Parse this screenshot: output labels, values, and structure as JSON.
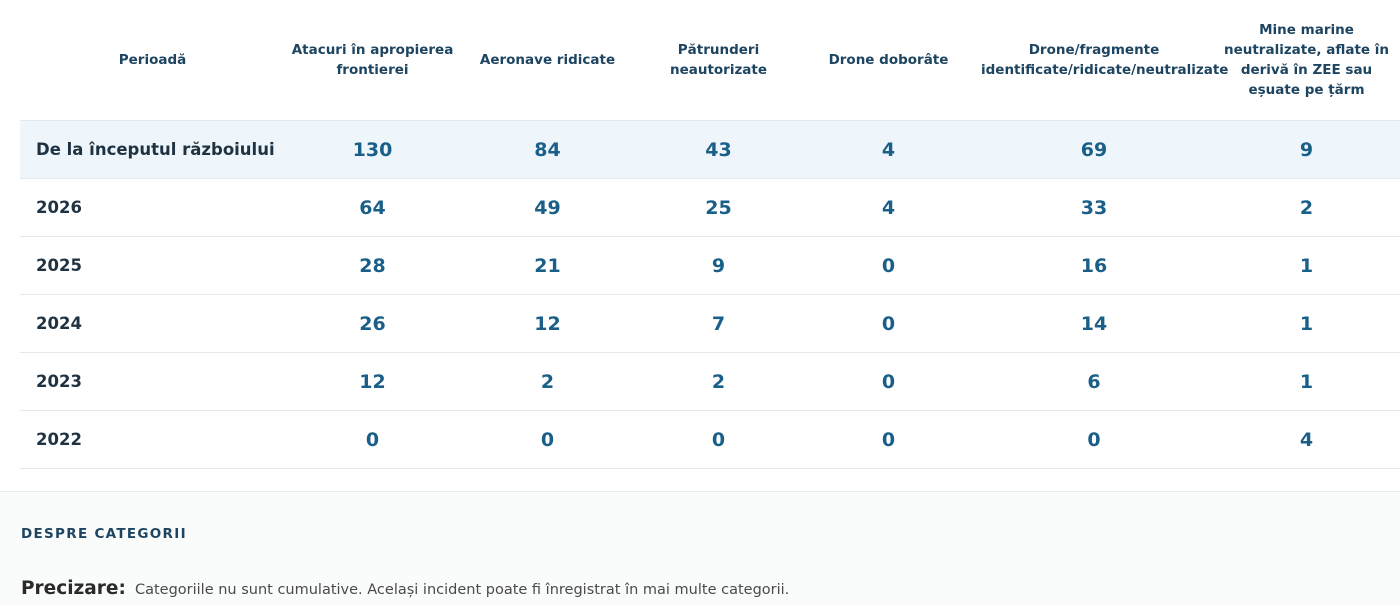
{
  "table": {
    "headers": [
      "Perioadă",
      "Atacuri în apropierea frontierei",
      "Aeronave ridicate",
      "Pătrunderi neautorizate",
      "Drone doborâte",
      "Drone/fragmente identificate/ridicate/neutralizate",
      "Mine marine neutralizate, aflate în derivă în ZEE sau eșuate pe țărm"
    ],
    "rows": [
      {
        "period": "De la începutul războiului",
        "values": [
          "130",
          "84",
          "43",
          "4",
          "69",
          "9"
        ]
      },
      {
        "period": "2026",
        "values": [
          "64",
          "49",
          "25",
          "4",
          "33",
          "2"
        ]
      },
      {
        "period": "2025",
        "values": [
          "28",
          "21",
          "9",
          "0",
          "16",
          "1"
        ]
      },
      {
        "period": "2024",
        "values": [
          "26",
          "12",
          "7",
          "0",
          "14",
          "1"
        ]
      },
      {
        "period": "2023",
        "values": [
          "12",
          "2",
          "2",
          "0",
          "6",
          "1"
        ]
      },
      {
        "period": "2022",
        "values": [
          "0",
          "0",
          "0",
          "0",
          "0",
          "4"
        ]
      }
    ]
  },
  "about": {
    "title": "DESPRE CATEGORII",
    "note_label": "Precizare:",
    "note_text": "Categoriile nu sunt cumulative. Același incident poate fi înregistrat în mai multe categorii."
  },
  "colors": {
    "header_text": "#1d4460",
    "value_text": "#1a5f88",
    "highlight_row": "#eef5fb"
  }
}
